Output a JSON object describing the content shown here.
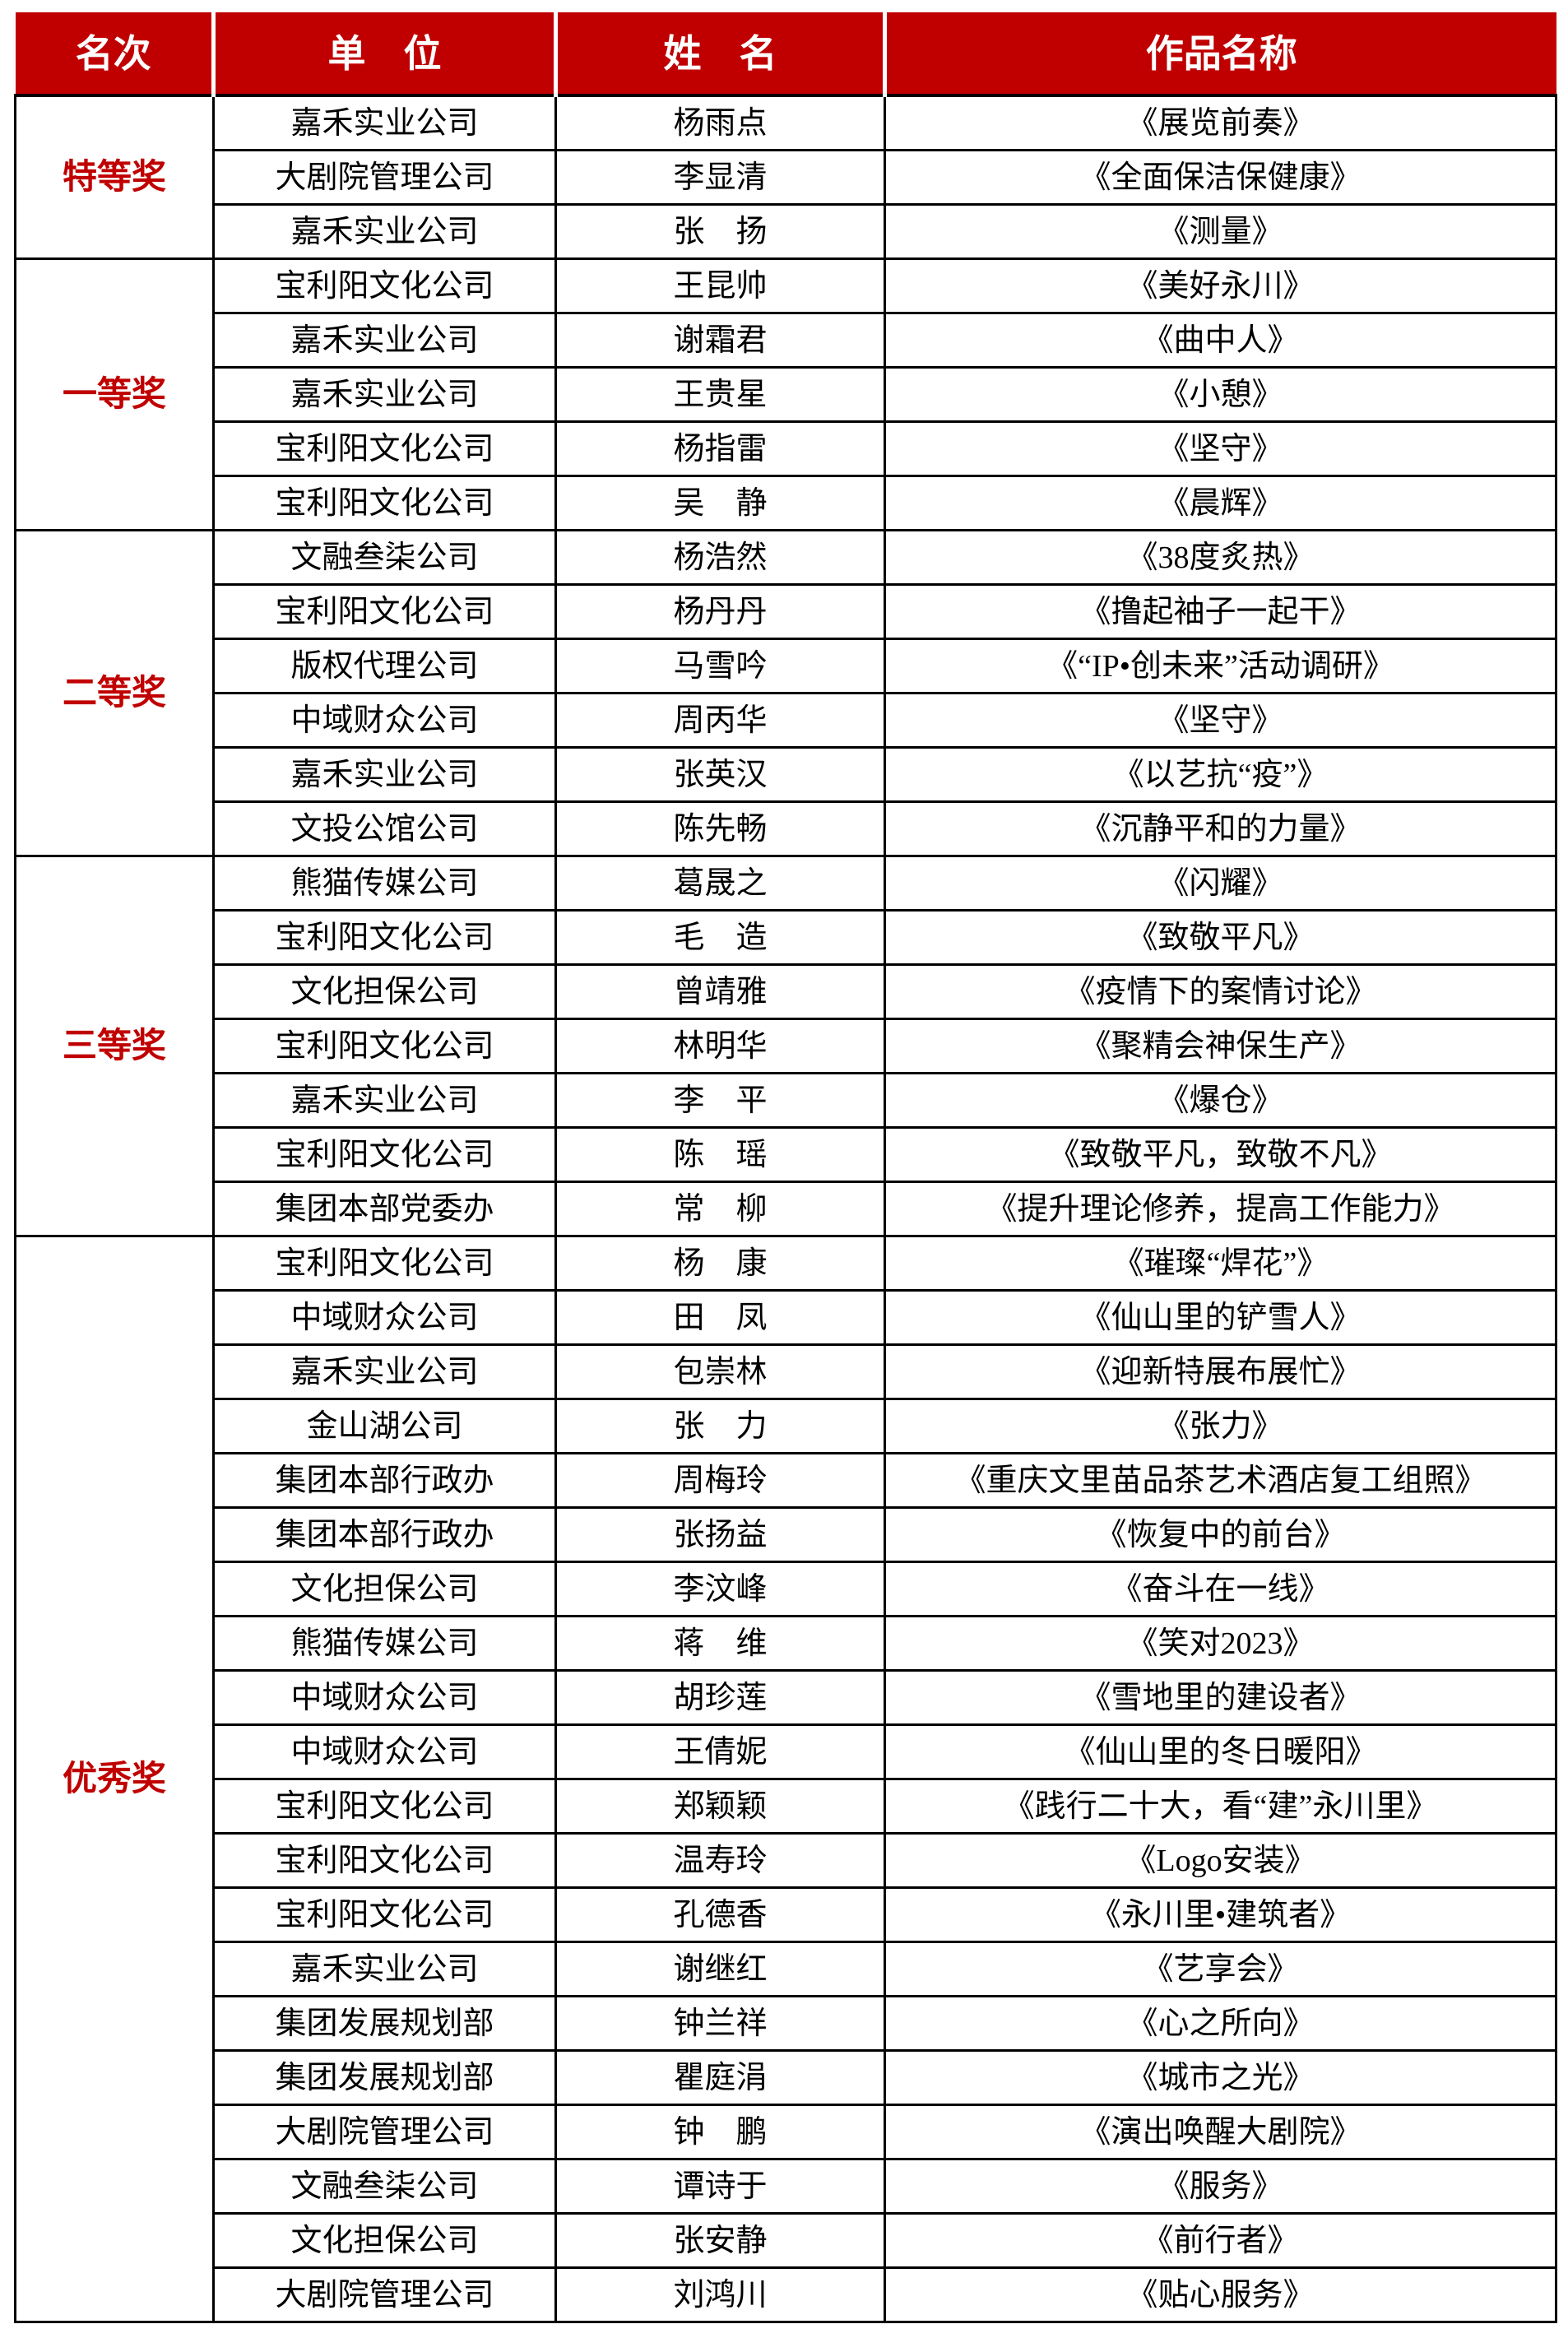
{
  "page": {
    "background": "#FFFFFF"
  },
  "table": {
    "columns": [
      "名次",
      "单　位",
      "姓　名",
      "作品名称"
    ],
    "style": {
      "header_bg": "#C00000",
      "header_text": "#FFFFFF",
      "rank_color": "#C00000",
      "border_color": "#000000"
    },
    "groups": [
      {
        "rank": "特等奖",
        "entries": [
          {
            "unit": "嘉禾实业公司",
            "name": "杨雨点",
            "work": "《展览前奏》"
          },
          {
            "unit": "大剧院管理公司",
            "name": "李显清",
            "work": "《全面保洁保健康》"
          },
          {
            "unit": "嘉禾实业公司",
            "name": "张　扬",
            "work": "《测量》"
          }
        ]
      },
      {
        "rank": "一等奖",
        "entries": [
          {
            "unit": "宝利阳文化公司",
            "name": "王昆帅",
            "work": "《美好永川》"
          },
          {
            "unit": "嘉禾实业公司",
            "name": "谢霜君",
            "work": "《曲中人》"
          },
          {
            "unit": "嘉禾实业公司",
            "name": "王贵星",
            "work": "《小憩》"
          },
          {
            "unit": "宝利阳文化公司",
            "name": "杨指雷",
            "work": "《坚守》"
          },
          {
            "unit": "宝利阳文化公司",
            "name": "吴　静",
            "work": "《晨辉》"
          }
        ]
      },
      {
        "rank": "二等奖",
        "entries": [
          {
            "unit": "文融叁柒公司",
            "name": "杨浩然",
            "work": "《38度炙热》"
          },
          {
            "unit": "宝利阳文化公司",
            "name": "杨丹丹",
            "work": "《撸起袖子一起干》"
          },
          {
            "unit": "版权代理公司",
            "name": "马雪吟",
            "work": "《“IP•创未来”活动调研》"
          },
          {
            "unit": "中域财众公司",
            "name": "周丙华",
            "work": "《坚守》"
          },
          {
            "unit": "嘉禾实业公司",
            "name": "张英汉",
            "work": "《以艺抗“疫”》"
          },
          {
            "unit": "文投公馆公司",
            "name": "陈先畅",
            "work": "《沉静平和的力量》"
          }
        ]
      },
      {
        "rank": "三等奖",
        "entries": [
          {
            "unit": "熊猫传媒公司",
            "name": "葛晟之",
            "work": "《闪耀》"
          },
          {
            "unit": "宝利阳文化公司",
            "name": "毛　造",
            "work": "《致敬平凡》"
          },
          {
            "unit": "文化担保公司",
            "name": "曾靖雅",
            "work": "《疫情下的案情讨论》"
          },
          {
            "unit": "宝利阳文化公司",
            "name": "林明华",
            "work": "《聚精会神保生产》"
          },
          {
            "unit": "嘉禾实业公司",
            "name": "李　平",
            "work": "《爆仓》"
          },
          {
            "unit": "宝利阳文化公司",
            "name": "陈　瑶",
            "work": "《致敬平凡，致敬不凡》"
          },
          {
            "unit": "集团本部党委办",
            "name": "常　柳",
            "work": "《提升理论修养，提高工作能力》"
          }
        ]
      },
      {
        "rank": "优秀奖",
        "entries": [
          {
            "unit": "宝利阳文化公司",
            "name": "杨　康",
            "work": "《璀璨“焊花”》"
          },
          {
            "unit": "中域财众公司",
            "name": "田　凤",
            "work": "《仙山里的铲雪人》"
          },
          {
            "unit": "嘉禾实业公司",
            "name": "包崇林",
            "work": "《迎新特展布展忙》"
          },
          {
            "unit": "金山湖公司",
            "name": "张　力",
            "work": "《张力》"
          },
          {
            "unit": "集团本部行政办",
            "name": "周梅玲",
            "work": "《重庆文里苗品茶艺术酒店复工组照》"
          },
          {
            "unit": "集团本部行政办",
            "name": "张扬益",
            "work": "《恢复中的前台》"
          },
          {
            "unit": "文化担保公司",
            "name": "李汶峰",
            "work": "《奋斗在一线》"
          },
          {
            "unit": "熊猫传媒公司",
            "name": "蒋　维",
            "work": "《笑对2023》"
          },
          {
            "unit": "中域财众公司",
            "name": "胡珍莲",
            "work": "《雪地里的建设者》"
          },
          {
            "unit": "中域财众公司",
            "name": "王倩妮",
            "work": "《仙山里的冬日暖阳》"
          },
          {
            "unit": "宝利阳文化公司",
            "name": "郑颖颖",
            "work": "《践行二十大，看“建”永川里》"
          },
          {
            "unit": "宝利阳文化公司",
            "name": "温寿玲",
            "work": "《Logo安装》"
          },
          {
            "unit": "宝利阳文化公司",
            "name": "孔德香",
            "work": "《永川里•建筑者》"
          },
          {
            "unit": "嘉禾实业公司",
            "name": "谢继红",
            "work": "《艺享会》"
          },
          {
            "unit": "集团发展规划部",
            "name": "钟兰祥",
            "work": "《心之所向》"
          },
          {
            "unit": "集团发展规划部",
            "name": "瞿庭涓",
            "work": "《城市之光》"
          },
          {
            "unit": "大剧院管理公司",
            "name": "钟　鹏",
            "work": "《演出唤醒大剧院》"
          },
          {
            "unit": "文融叁柒公司",
            "name": "谭诗于",
            "work": "《服务》"
          },
          {
            "unit": "文化担保公司",
            "name": "张安静",
            "work": "《前行者》"
          },
          {
            "unit": "大剧院管理公司",
            "name": "刘鸿川",
            "work": "《贴心服务》"
          }
        ]
      }
    ]
  }
}
